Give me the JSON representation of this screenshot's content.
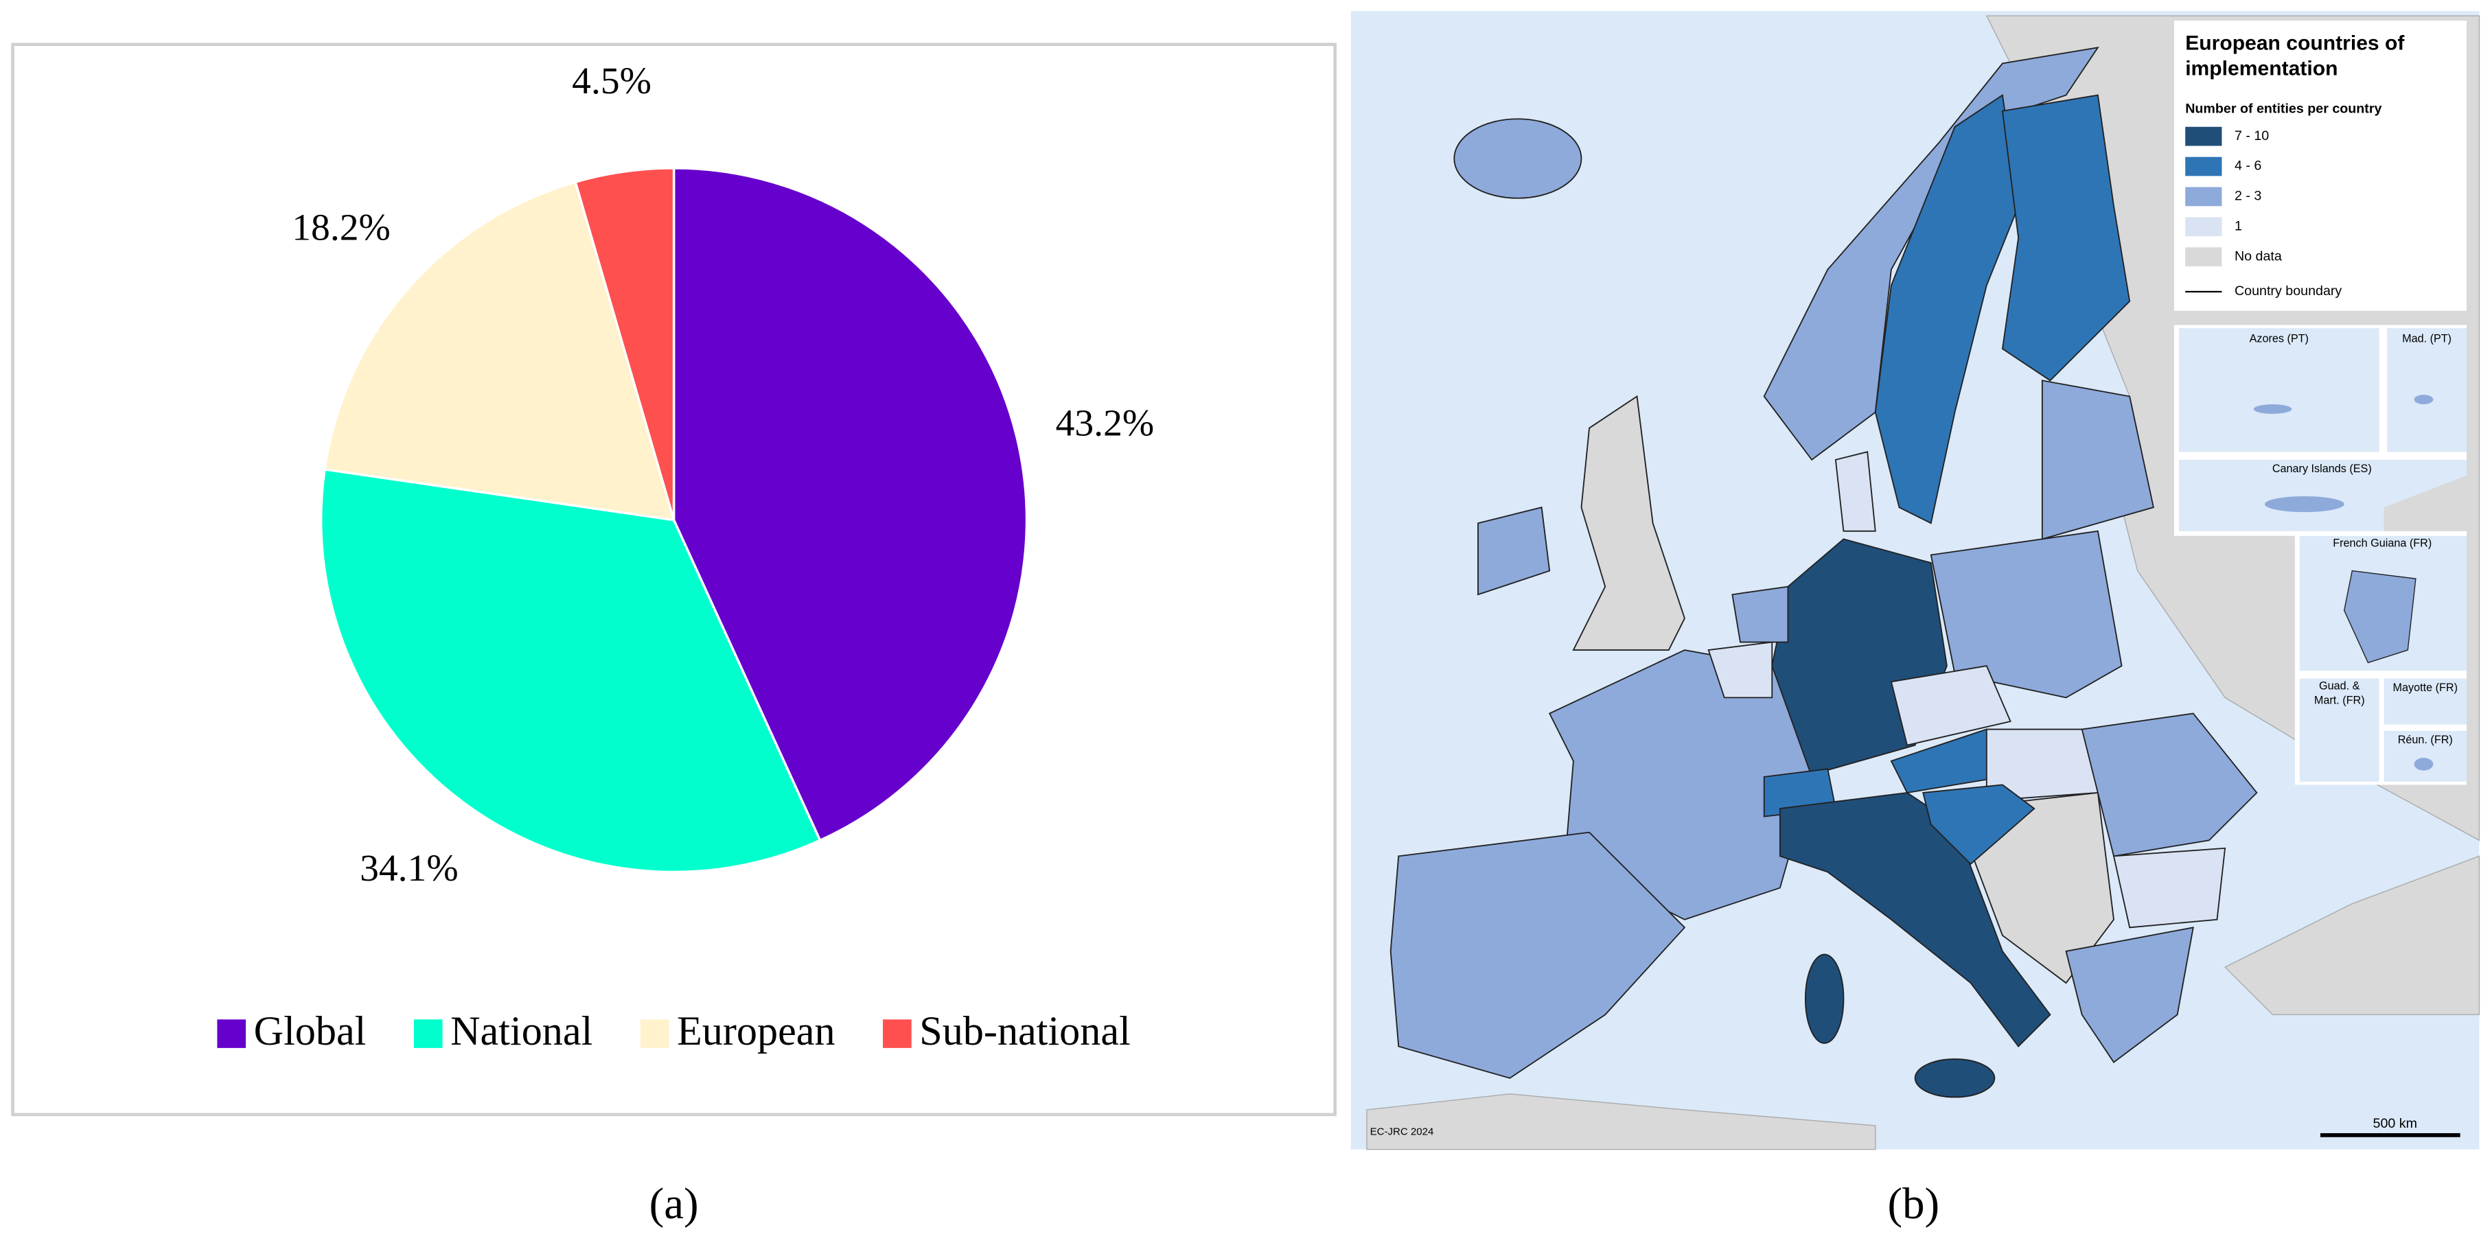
{
  "chart_data": {
    "type": "pie",
    "categories": [
      "Global",
      "National",
      "European",
      "Sub-national"
    ],
    "values": [
      43.2,
      34.1,
      18.2,
      4.5
    ],
    "value_labels": [
      "43.2%",
      "34.1%",
      "18.2%",
      "4.5%"
    ],
    "colors": [
      "#6600cc",
      "#00ffcc",
      "#fff2cc",
      "#ff5050"
    ],
    "legend": "bottom"
  },
  "map": {
    "title": [
      "European countries of",
      "implementation"
    ],
    "legend_title": "Number of entities per country",
    "legend": [
      {
        "label": "7 - 10",
        "color": "#1f4e79"
      },
      {
        "label": "4 - 6",
        "color": "#2e75b6"
      },
      {
        "label": "2 - 3",
        "color": "#8eaadb"
      },
      {
        "label": "1",
        "color": "#dae3f3"
      },
      {
        "label": "No data",
        "color": "#d9d9d9"
      }
    ],
    "boundary": "Country boundary",
    "insets": [
      "Azores (PT)",
      "Mad. (PT)",
      "Canary Islands (ES)",
      "French Guiana (FR)",
      "Guad. &",
      "Mart. (FR)",
      "Mayotte (FR)",
      "Réun. (FR)"
    ],
    "credit": "EC-JRC 2024",
    "scale": "500 km"
  },
  "captions": [
    "(a)",
    "(b)"
  ]
}
